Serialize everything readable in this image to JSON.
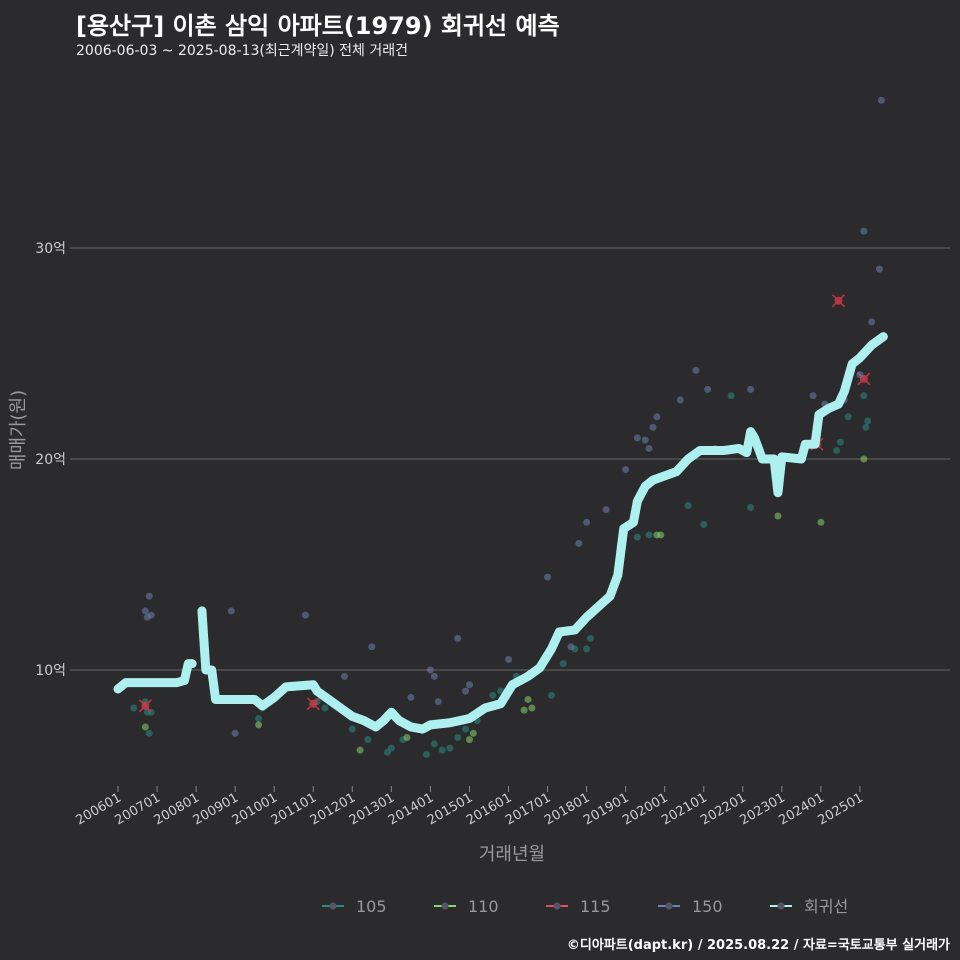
{
  "chart_data": {
    "type": "scatter",
    "title": "[용산구] 이촌 삼익 아파트(1979) 회귀선 예측",
    "subtitle": "2006-06-03 ~ 2025-08-13(최근계약일) 전체 거래건",
    "xlabel": "거래년월",
    "ylabel": "매매가(원)",
    "ylim": [
      4.5,
      38
    ],
    "yticks": [
      {
        "v": 10,
        "label": "10억"
      },
      {
        "v": 20,
        "label": "20억"
      },
      {
        "v": 30,
        "label": "30억"
      }
    ],
    "xticks": [
      "200601",
      "200701",
      "200801",
      "200901",
      "201001",
      "201101",
      "201201",
      "201301",
      "201401",
      "201501",
      "201601",
      "201701",
      "201801",
      "201901",
      "202001",
      "202101",
      "202201",
      "202301",
      "202401",
      "202501"
    ],
    "xlim": [
      2006,
      2025
    ],
    "legend": {
      "position": "bottom",
      "entries": [
        {
          "name": "105",
          "color": "#2a8a84"
        },
        {
          "name": "110",
          "color": "#86d46e"
        },
        {
          "name": "115",
          "color": "#e0505a"
        },
        {
          "name": "150",
          "color": "#6b7fae"
        },
        {
          "name": "회귀선",
          "color": "#aef0ef"
        }
      ]
    },
    "series": [
      {
        "name": "105",
        "points": [
          [
            2006.4,
            8.2
          ],
          [
            2006.7,
            8.5
          ],
          [
            2006.75,
            8.0
          ],
          [
            2006.8,
            7.0
          ],
          [
            2006.85,
            8.0
          ],
          [
            2009.6,
            7.7
          ],
          [
            2009.7,
            8.2
          ],
          [
            2011.1,
            8.5
          ],
          [
            2011.3,
            8.2
          ],
          [
            2012.0,
            7.2
          ],
          [
            2012.4,
            6.7
          ],
          [
            2012.9,
            6.1
          ],
          [
            2013.0,
            6.3
          ],
          [
            2013.3,
            6.7
          ],
          [
            2013.9,
            6.0
          ],
          [
            2014.1,
            6.5
          ],
          [
            2014.3,
            6.2
          ],
          [
            2014.5,
            6.3
          ],
          [
            2014.7,
            6.8
          ],
          [
            2014.9,
            7.2
          ],
          [
            2015.2,
            7.6
          ],
          [
            2015.6,
            8.8
          ],
          [
            2015.8,
            9.0
          ],
          [
            2016.2,
            9.7
          ],
          [
            2017.1,
            8.8
          ],
          [
            2017.4,
            10.3
          ],
          [
            2017.7,
            11.0
          ],
          [
            2018.0,
            11.0
          ],
          [
            2018.1,
            11.5
          ],
          [
            2019.3,
            16.3
          ],
          [
            2019.6,
            16.4
          ],
          [
            2020.6,
            17.8
          ],
          [
            2021.0,
            16.9
          ],
          [
            2021.7,
            23.0
          ],
          [
            2022.2,
            17.7
          ],
          [
            2024.4,
            20.4
          ],
          [
            2024.5,
            20.8
          ],
          [
            2024.7,
            22.0
          ],
          [
            2025.1,
            23.0
          ],
          [
            2025.15,
            21.5
          ],
          [
            2025.2,
            21.8
          ]
        ]
      },
      {
        "name": "110",
        "points": [
          [
            2006.7,
            7.3
          ],
          [
            2009.6,
            7.4
          ],
          [
            2012.2,
            6.2
          ],
          [
            2013.4,
            6.8
          ],
          [
            2015.0,
            6.7
          ],
          [
            2015.1,
            7.0
          ],
          [
            2016.4,
            8.1
          ],
          [
            2016.5,
            8.6
          ],
          [
            2016.6,
            8.2
          ],
          [
            2019.8,
            16.4
          ],
          [
            2019.9,
            16.4
          ],
          [
            2022.9,
            17.3
          ],
          [
            2024.0,
            17.0
          ],
          [
            2025.1,
            20.0
          ]
        ]
      },
      {
        "name": "115",
        "points": [
          [
            2006.7,
            8.3
          ],
          [
            2011.0,
            8.4
          ],
          [
            2023.9,
            20.7
          ],
          [
            2024.45,
            27.5
          ],
          [
            2025.1,
            23.8
          ]
        ]
      },
      {
        "name": "150",
        "points": [
          [
            2006.7,
            12.8
          ],
          [
            2006.75,
            12.5
          ],
          [
            2006.8,
            13.5
          ],
          [
            2006.85,
            12.6
          ],
          [
            2008.9,
            12.8
          ],
          [
            2009.0,
            7.0
          ],
          [
            2010.8,
            12.6
          ],
          [
            2011.8,
            9.7
          ],
          [
            2012.5,
            11.1
          ],
          [
            2013.5,
            8.7
          ],
          [
            2014.0,
            10.0
          ],
          [
            2014.1,
            9.7
          ],
          [
            2014.2,
            8.5
          ],
          [
            2014.7,
            11.5
          ],
          [
            2014.9,
            9.0
          ],
          [
            2015.0,
            9.3
          ],
          [
            2016.0,
            10.5
          ],
          [
            2017.0,
            14.4
          ],
          [
            2017.6,
            11.1
          ],
          [
            2017.8,
            16.0
          ],
          [
            2018.0,
            17.0
          ],
          [
            2018.5,
            17.6
          ],
          [
            2019.0,
            19.5
          ],
          [
            2019.3,
            21.0
          ],
          [
            2019.5,
            20.9
          ],
          [
            2019.6,
            20.5
          ],
          [
            2019.7,
            21.5
          ],
          [
            2019.8,
            22.0
          ],
          [
            2020.4,
            22.8
          ],
          [
            2020.8,
            24.2
          ],
          [
            2021.1,
            23.3
          ],
          [
            2021.3,
            20.5
          ],
          [
            2022.2,
            23.3
          ],
          [
            2023.8,
            23.0
          ],
          [
            2024.1,
            22.6
          ],
          [
            2024.6,
            22.8
          ],
          [
            2025.0,
            24.0
          ],
          [
            2025.1,
            30.8
          ],
          [
            2025.3,
            26.5
          ],
          [
            2025.5,
            29.0
          ],
          [
            2025.55,
            37.0
          ]
        ]
      }
    ],
    "regression": [
      [
        2006,
        9.1
      ],
      [
        2006.2,
        9.4
      ],
      [
        2007.5,
        9.4
      ],
      [
        2007.7,
        9.5
      ],
      [
        2007.8,
        10.3
      ],
      [
        2007.9,
        10.3
      ],
      null,
      [
        2008.15,
        12.8
      ],
      [
        2008.25,
        10.0
      ],
      [
        2008.4,
        10.0
      ],
      [
        2008.5,
        8.6
      ],
      [
        2009.5,
        8.6
      ],
      [
        2009.7,
        8.3
      ],
      [
        2010.0,
        8.7
      ],
      [
        2010.3,
        9.2
      ],
      [
        2011.0,
        9.3
      ],
      [
        2011.1,
        9.0
      ],
      [
        2011.4,
        8.6
      ],
      [
        2011.7,
        8.2
      ],
      [
        2012.0,
        7.8
      ],
      [
        2012.3,
        7.6
      ],
      [
        2012.6,
        7.3
      ],
      [
        2012.8,
        7.6
      ],
      [
        2013.0,
        8.0
      ],
      [
        2013.2,
        7.6
      ],
      [
        2013.5,
        7.3
      ],
      [
        2013.8,
        7.2
      ],
      [
        2014.0,
        7.4
      ],
      [
        2014.5,
        7.5
      ],
      [
        2015.0,
        7.7
      ],
      [
        2015.4,
        8.2
      ],
      [
        2015.8,
        8.4
      ],
      [
        2016.1,
        9.3
      ],
      [
        2016.5,
        9.7
      ],
      [
        2016.8,
        10.1
      ],
      [
        2017.1,
        11.0
      ],
      [
        2017.3,
        11.8
      ],
      [
        2017.7,
        11.9
      ],
      [
        2018.0,
        12.5
      ],
      [
        2018.3,
        13.0
      ],
      [
        2018.6,
        13.5
      ],
      [
        2018.8,
        14.5
      ],
      [
        2018.95,
        16.7
      ],
      [
        2019.2,
        17.0
      ],
      [
        2019.3,
        18.0
      ],
      [
        2019.5,
        18.7
      ],
      [
        2019.7,
        19.0
      ],
      [
        2020.0,
        19.2
      ],
      [
        2020.3,
        19.4
      ],
      [
        2020.6,
        20.0
      ],
      [
        2020.9,
        20.4
      ],
      [
        2021.5,
        20.4
      ],
      [
        2021.9,
        20.5
      ],
      [
        2022.1,
        20.3
      ],
      [
        2022.2,
        21.3
      ],
      [
        2022.3,
        21.0
      ],
      [
        2022.5,
        20.0
      ],
      [
        2022.8,
        20.0
      ],
      [
        2022.9,
        18.4
      ],
      [
        2023.0,
        20.1
      ],
      [
        2023.5,
        20.0
      ],
      [
        2023.6,
        20.7
      ],
      [
        2023.85,
        20.7
      ],
      [
        2023.95,
        22.1
      ],
      [
        2024.2,
        22.4
      ],
      [
        2024.45,
        22.6
      ],
      [
        2024.6,
        23.2
      ],
      [
        2024.8,
        24.5
      ],
      [
        2025.0,
        24.8
      ],
      [
        2025.3,
        25.4
      ],
      [
        2025.6,
        25.8
      ]
    ]
  },
  "footer": "©디아파트(dapt.kr) / 2025.08.22 / 자료=국토교통부 실거래가"
}
